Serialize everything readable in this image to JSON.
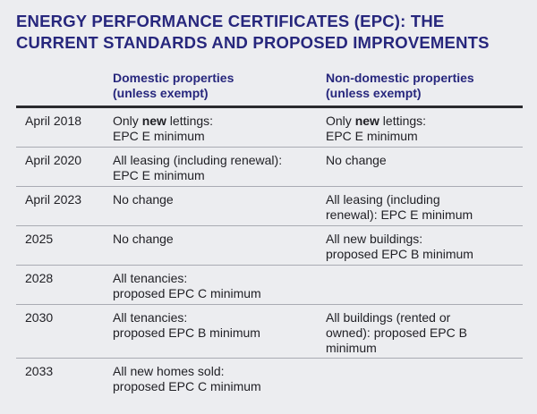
{
  "title": "ENERGY PERFORMANCE CERTIFICATES (EPC): THE CURRENT STANDARDS AND PROPOSED IMPROVEMENTS",
  "headers": {
    "domestic_line1": "Domestic properties",
    "domestic_line2": "(unless exempt)",
    "nondomestic_line1": "Non-domestic properties",
    "nondomestic_line2": "(unless exempt)"
  },
  "rows": [
    {
      "date": "April 2018",
      "domestic": {
        "pre": "Only ",
        "bold": "new",
        "post": " lettings:",
        "line2": "EPC E minimum"
      },
      "nondomestic": {
        "pre": "Only ",
        "bold": "new",
        "post": " lettings:",
        "line2": "EPC E minimum"
      }
    },
    {
      "date": "April 2020",
      "domestic": {
        "line1": "All leasing (including renewal):",
        "line2": "EPC E minimum"
      },
      "nondomestic": {
        "line1": "No change",
        "line2": ""
      }
    },
    {
      "date": "April 2023",
      "domestic": {
        "line1": "No change",
        "line2": ""
      },
      "nondomestic": {
        "line1": "All leasing (including",
        "line2": "renewal): EPC E minimum"
      }
    },
    {
      "date": "2025",
      "domestic": {
        "line1": "No change",
        "line2": ""
      },
      "nondomestic": {
        "line1": "All new buildings:",
        "line2": "proposed EPC B minimum"
      }
    },
    {
      "date": "2028",
      "domestic": {
        "line1": "All tenancies:",
        "line2": "proposed EPC C minimum"
      },
      "nondomestic": {
        "line1": "",
        "line2": ""
      }
    },
    {
      "date": "2030",
      "domestic": {
        "line1": "All tenancies:",
        "line2": "proposed EPC B minimum"
      },
      "nondomestic": {
        "line1": "All buildings (rented or",
        "line2": "owned): proposed EPC B",
        "line3": "minimum"
      }
    },
    {
      "date": "2033",
      "domestic": {
        "line1": "All new homes sold:",
        "line2": "proposed EPC C minimum"
      },
      "nondomestic": {
        "line1": "",
        "line2": ""
      }
    }
  ]
}
